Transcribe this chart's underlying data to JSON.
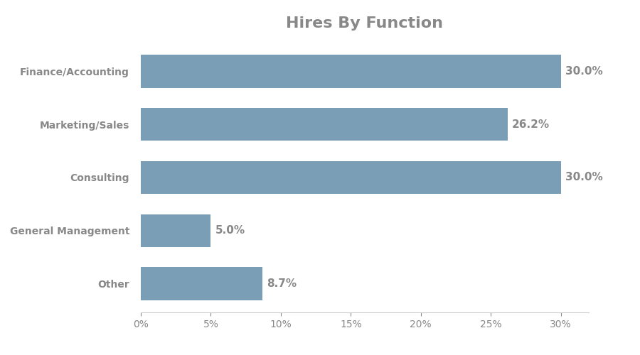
{
  "title": "Hires By Function",
  "categories": [
    "Finance/Accounting",
    "Marketing/Sales",
    "Consulting",
    "General Management",
    "Other"
  ],
  "values": [
    30.0,
    26.2,
    30.0,
    5.0,
    8.7
  ],
  "labels": [
    "30.0%",
    "26.2%",
    "30.0%",
    "5.0%",
    "8.7%"
  ],
  "bar_color": "#7a9eb5",
  "title_color": "#888888",
  "label_color": "#888888",
  "tick_color": "#888888",
  "background_color": "#ffffff",
  "xlim": [
    0,
    32
  ],
  "xticks": [
    0,
    5,
    10,
    15,
    20,
    25,
    30
  ],
  "title_fontsize": 16,
  "label_fontsize": 11,
  "tick_fontsize": 10,
  "ylabel_fontsize": 10,
  "bar_height": 0.62
}
